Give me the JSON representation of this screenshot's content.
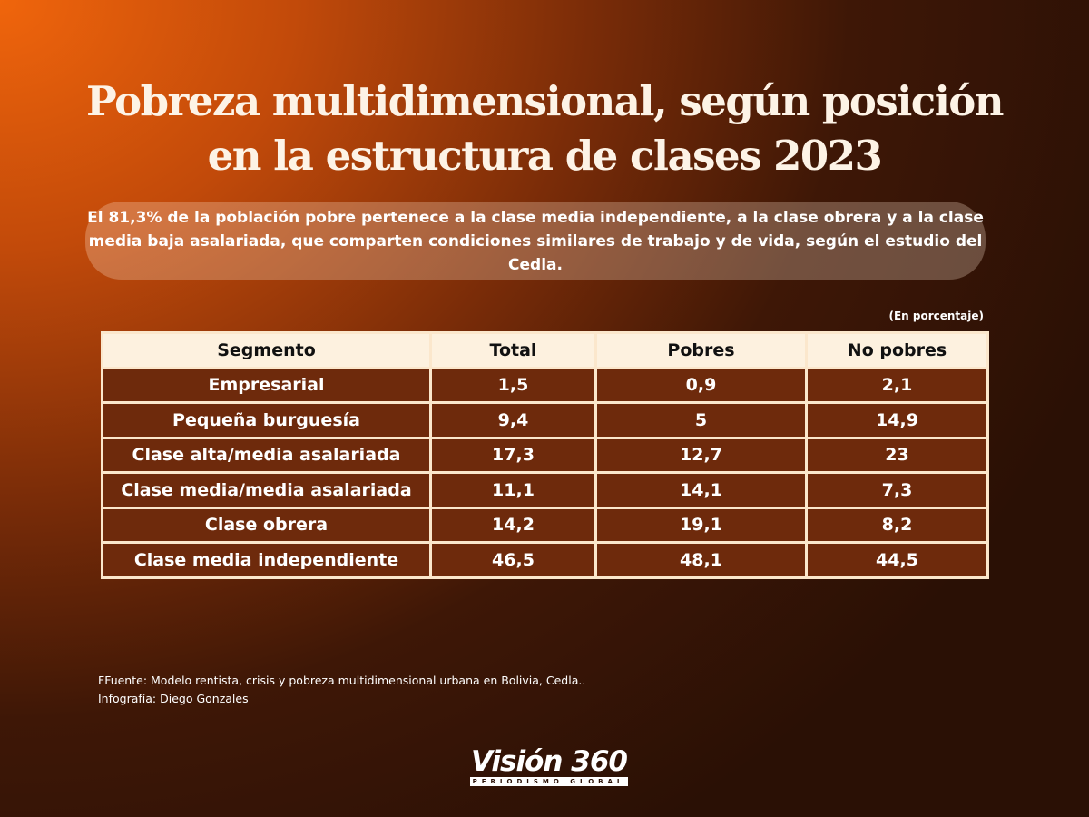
{
  "title_line1": "Pobreza multidimensional, según posición",
  "title_line2": "en la estructura de clases 2023",
  "subtitle": "El 81,3% de la población pobre pertenece a la clase media independiente, a la clase obrera y a la clase media baja asalariada, que comparten condiciones similares de trabajo y de vida, según el estudio del Cedla.",
  "unit_note": "(En porcentaje)",
  "chart_data": {
    "type": "table",
    "columns": [
      "Segmento",
      "Total",
      "Pobres",
      "No pobres"
    ],
    "rows": [
      [
        "Empresarial",
        "1,5",
        "0,9",
        "2,1"
      ],
      [
        "Pequeña burguesía",
        "9,4",
        "5",
        "14,9"
      ],
      [
        "Clase alta/media asalariada",
        "17,3",
        "12,7",
        "23"
      ],
      [
        "Clase media/media asalariada",
        "11,1",
        "14,1",
        "7,3"
      ],
      [
        "Clase obrera",
        "14,2",
        "19,1",
        "8,2"
      ],
      [
        "Clase media independiente",
        "46,5",
        "48,1",
        "44,5"
      ]
    ]
  },
  "source": "FFuente: Modelo rentista, crisis y pobreza multidimensional urbana en Bolivia, Cedla..",
  "credit": "Infografía: Diego Gonzales",
  "logo": {
    "name": "Visión 360",
    "tagline": "PERIODISMO GLOBAL"
  }
}
